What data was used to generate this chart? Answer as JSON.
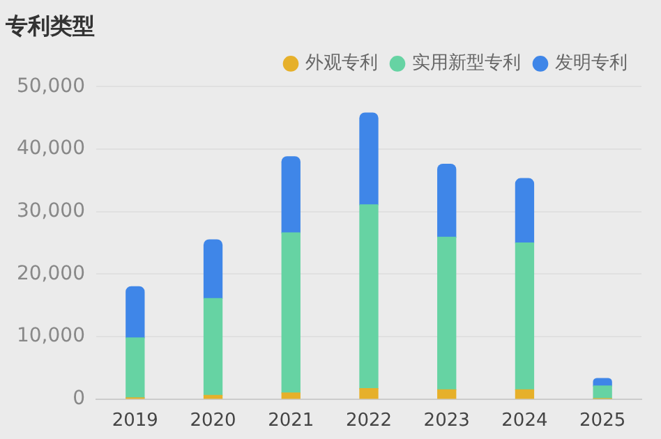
{
  "chart_data": {
    "type": "bar",
    "title": "专利类型",
    "categories": [
      "2019",
      "2020",
      "2021",
      "2022",
      "2023",
      "2024",
      "2025"
    ],
    "stacked": true,
    "series": [
      {
        "name": "外观专利",
        "color": "#e6b02a",
        "values": [
          200,
          600,
          1000,
          1700,
          1500,
          1500,
          100
        ]
      },
      {
        "name": "实用新型专利",
        "color": "#66d3a3",
        "values": [
          9600,
          15500,
          25600,
          29400,
          24400,
          23500,
          2000
        ]
      },
      {
        "name": "发明专利",
        "color": "#3f86e8",
        "values": [
          8200,
          9400,
          12200,
          14700,
          11700,
          10300,
          1200
        ]
      }
    ],
    "ylim": [
      0,
      50000
    ],
    "yticks": [
      {
        "value": 0,
        "label": "0"
      },
      {
        "value": 10000,
        "label": "10,000"
      },
      {
        "value": 20000,
        "label": "20,000"
      },
      {
        "value": 30000,
        "label": "30,000"
      },
      {
        "value": 40000,
        "label": "40,000"
      },
      {
        "value": 50000,
        "label": "50,000"
      }
    ],
    "grid": "y",
    "legend": "top right",
    "marker": "circle"
  }
}
